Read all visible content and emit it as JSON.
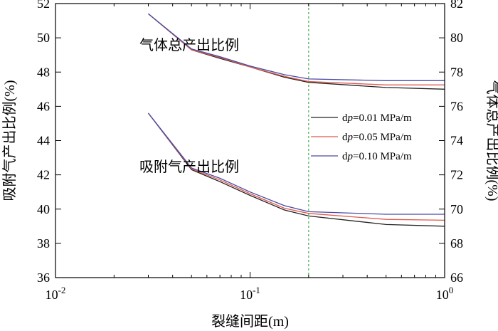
{
  "chart_data": {
    "type": "line",
    "xlabel": "裂缝间距(m)",
    "ylabel_left": "吸附气产出比例(%)",
    "ylabel_right": "气体总产出比例(%)",
    "x_scale": "log",
    "xlim": [
      0.01,
      1
    ],
    "ylim_left": [
      36,
      52
    ],
    "ylim_right": [
      66,
      82
    ],
    "x_ticks": [
      0.01,
      0.1,
      1
    ],
    "x_tick_labels": [
      "10",
      "10",
      "10"
    ],
    "x_tick_exponents": [
      "-2",
      "-1",
      "0"
    ],
    "y_ticks_left": [
      36,
      38,
      40,
      42,
      44,
      46,
      48,
      50,
      52
    ],
    "y_ticks_right": [
      66,
      68,
      70,
      72,
      74,
      76,
      78,
      80,
      82
    ],
    "grid": false,
    "legend_position": "right",
    "reference_line": {
      "x": 0.2,
      "color": "#4caf50",
      "style": "dashed"
    },
    "annotations": [
      {
        "text": "气体总产出比例",
        "x": 0.027,
        "y_left": 49.3
      },
      {
        "text": "吸附气产出比例",
        "x": 0.027,
        "y_left": 42.2
      }
    ],
    "groups": [
      {
        "name": "气体总产出比例",
        "axis": "right",
        "series": [
          {
            "legend": "dp=0.01 MPa/m",
            "color": "#222222",
            "x": [
              0.03,
              0.05,
              0.07,
              0.1,
              0.15,
              0.2,
              0.5,
              1.0
            ],
            "y": [
              81.4,
              79.3,
              78.8,
              78.3,
              77.7,
              77.4,
              77.1,
              77.0
            ]
          },
          {
            "legend": "dp=0.05 MPa/m",
            "color": "#e05a4a",
            "x": [
              0.03,
              0.05,
              0.07,
              0.1,
              0.15,
              0.2,
              0.5,
              1.0
            ],
            "y": [
              81.4,
              79.3,
              78.85,
              78.3,
              77.75,
              77.45,
              77.25,
              77.25
            ]
          },
          {
            "legend": "dp=0.10 MPa/m",
            "color": "#4a4aa8",
            "x": [
              0.03,
              0.05,
              0.07,
              0.1,
              0.15,
              0.2,
              0.5,
              1.0
            ],
            "y": [
              81.4,
              79.35,
              78.9,
              78.35,
              77.85,
              77.6,
              77.5,
              77.5
            ]
          }
        ]
      },
      {
        "name": "吸附气产出比例",
        "axis": "left",
        "series": [
          {
            "legend": "dp=0.01 MPa/m",
            "color": "#222222",
            "x": [
              0.03,
              0.05,
              0.07,
              0.1,
              0.15,
              0.2,
              0.5,
              1.0
            ],
            "y": [
              45.6,
              42.3,
              41.6,
              40.8,
              39.95,
              39.6,
              39.1,
              39.0
            ]
          },
          {
            "legend": "dp=0.05 MPa/m",
            "color": "#e05a4a",
            "x": [
              0.03,
              0.05,
              0.07,
              0.1,
              0.15,
              0.2,
              0.5,
              1.0
            ],
            "y": [
              45.6,
              42.35,
              41.7,
              40.9,
              40.05,
              39.75,
              39.4,
              39.35
            ]
          },
          {
            "legend": "dp=0.10 MPa/m",
            "color": "#4a4aa8",
            "x": [
              0.03,
              0.05,
              0.07,
              0.1,
              0.15,
              0.2,
              0.5,
              1.0
            ],
            "y": [
              45.6,
              42.4,
              41.8,
              41.0,
              40.2,
              39.85,
              39.7,
              39.7
            ]
          }
        ]
      }
    ],
    "legend": [
      {
        "pre": "d",
        "italic": "p",
        "post": "=0.01 MPa/m",
        "color": "#222222"
      },
      {
        "pre": "d",
        "italic": "p",
        "post": "=0.05 MPa/m",
        "color": "#e05a4a"
      },
      {
        "pre": "d",
        "italic": "p",
        "post": "=0.10 MPa/m",
        "color": "#4a4aa8"
      }
    ]
  }
}
